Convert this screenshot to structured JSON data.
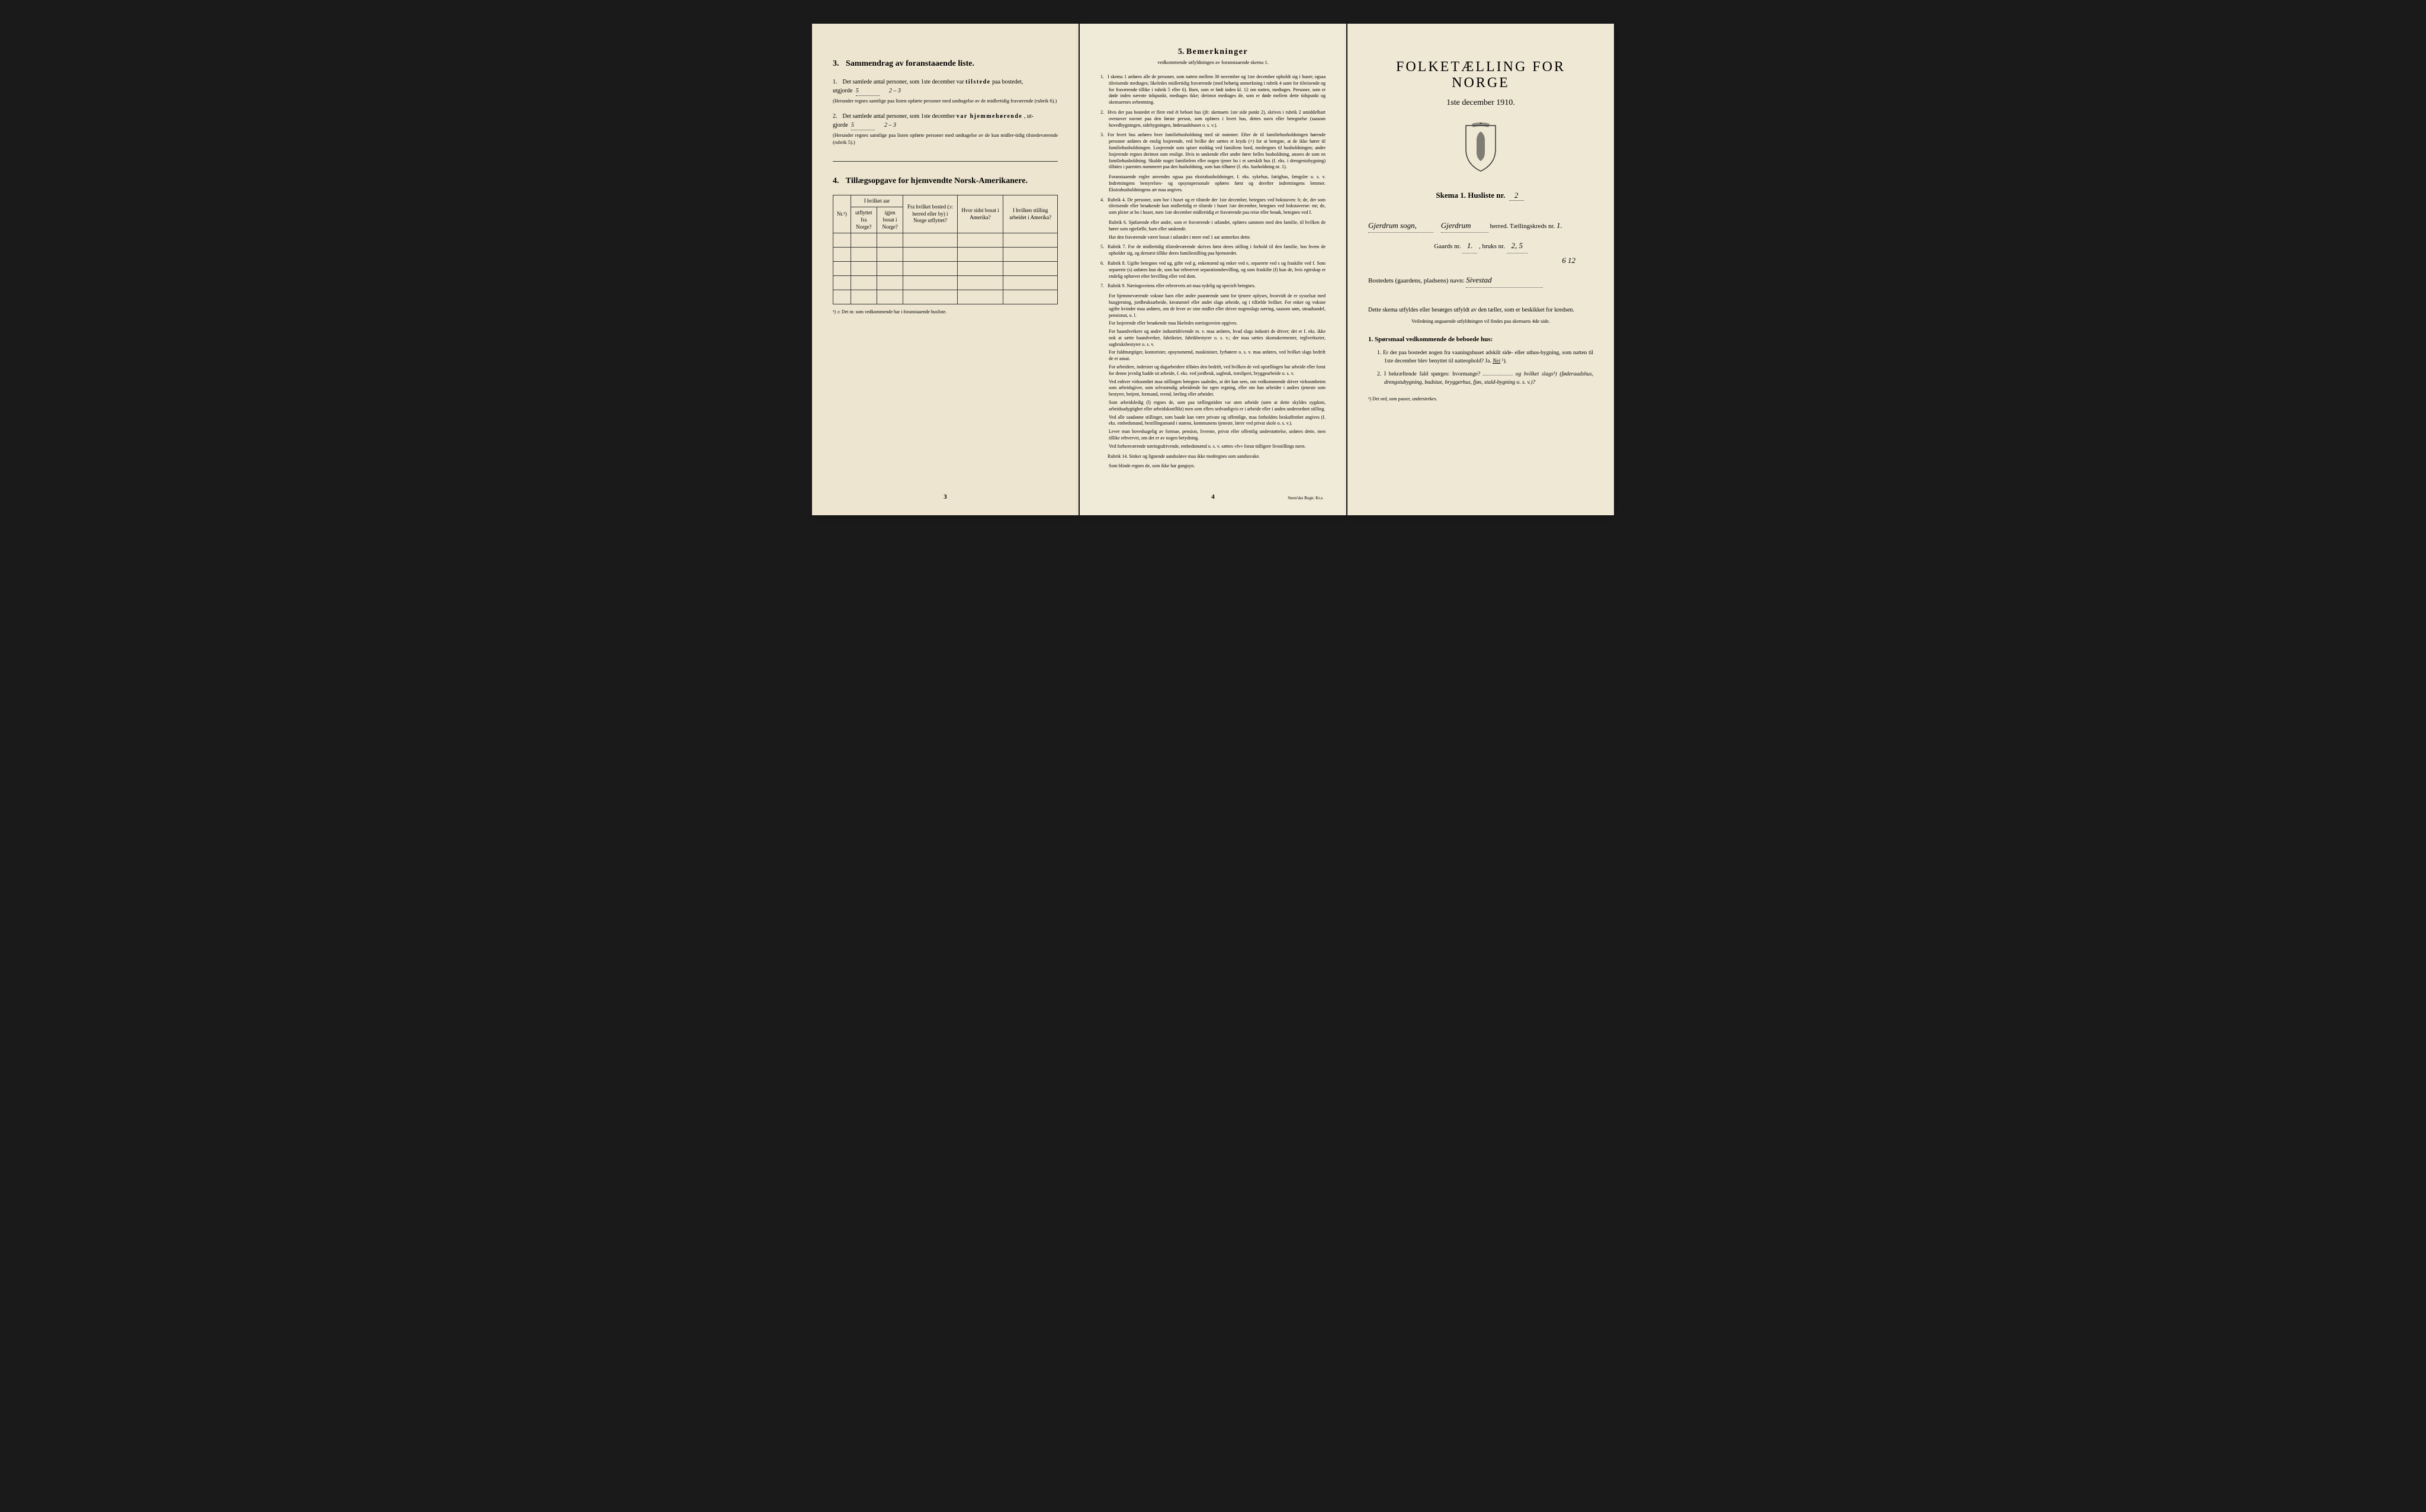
{
  "colors": {
    "page_bg": "#1a1a1a",
    "panel1_bg": "#ede5d0",
    "panel2_bg": "#f0ead8",
    "panel3_bg": "#efe8d5",
    "text": "#222222",
    "border": "#333333"
  },
  "typography": {
    "body_family": "Georgia, Times New Roman, serif",
    "title_size_pt": 24,
    "section_size_pt": 14,
    "body_size_pt": 10,
    "small_size_pt": 8
  },
  "panel1": {
    "section3": {
      "num": "3.",
      "title": "Sammendrag av foranstaaende liste.",
      "item1": {
        "num": "1.",
        "text_a": "Det samlede antal personer, som 1ste december var ",
        "text_bold": "tilstede",
        "text_b": " paa bostedet,",
        "text_c": "utgjorde",
        "fill_value": "5",
        "fill_note": "2 – 3",
        "note": "(Herunder regnes samtlige paa listen opførte personer med undtagelse av de midlertidig fraværende (rubrik 6).)"
      },
      "item2": {
        "num": "2.",
        "text_a": "Det samlede antal personer, som 1ste december ",
        "text_bold": "var hjemmehørende",
        "text_b": ", ut-",
        "text_c": "gjorde",
        "fill_value": "5",
        "fill_note": "2 – 3",
        "note": "(Herunder regnes samtlige paa listen opførte personer med undtagelse av de kun midler-tidig tilstedeværende (rubrik 5).)"
      }
    },
    "section4": {
      "num": "4.",
      "title": "Tillægsopgave for hjemvendte Norsk-Amerikanere.",
      "table": {
        "columns": [
          "Nr.¹)",
          "I hvilket aar",
          "Fra hvilket bosted (ɔ: herred eller by) i Norge utflyttet?",
          "Hvor sidst bosat i Amerika?",
          "I hvilken stilling arbeidet i Amerika?"
        ],
        "subcolumns_col2": [
          "utflyttet fra Norge?",
          "igjen bosat i Norge?"
        ],
        "rows": 5,
        "col_widths": [
          "30px",
          "45px",
          "45px",
          "95px",
          "80px",
          "95px"
        ]
      },
      "footnote": "¹) ɔ: Det nr. som vedkommende har i foranstaaende husliste."
    },
    "page_number": "3"
  },
  "panel2": {
    "title_num": "5.",
    "title": "Bemerkninger",
    "subtitle": "vedkommende utfyldningen av foranstaaende skema 1.",
    "remarks": [
      {
        "num": "1.",
        "text": "I skema 1 anføres alle de personer, som natten mellem 30 november og 1ste december opholdt sig i huset; ogsaa tilreisende medtages; likeledes midlertidig fraværende (med behørig anmerkning i rubrik 4 samt for tilreisende og for fraværende tillike i rubrik 5 eller 6). Barn, som er født inden kl. 12 om natten, medtages. Personer, som er døde inden nævnte tidspunkt, medtages ikke; derimot medtages de, som er døde mellem dette tidspunkt og skemaernes avhentning."
      },
      {
        "num": "2.",
        "text": "Hvis der paa bostedet er flere end ét beboet hus (jfr. skemaets 1ste side punkt 2), skrives i rubrik 2 umiddelbart ovenover navnet paa den første person, som opføres i hvert hus, dettes navn eller betegnelse (saasom hovedbygningen, sidebygningen, føderaadshuset o. s. v.)."
      },
      {
        "num": "3.",
        "text": "For hvert hus anføres hver familiehusholdning med sit nummer. Efter de til familiehusholdningen hørende personer anføres de enslig losjerende, ved hvilke der sættes et kryds (×) for at betegne, at de ikke hører til familiehusholdningen. Losjerende som spiser middag ved familiens bord, medregnes til husholdningen; andre losjerende regnes derimot som enslige. Hvis to søskende eller andre fører fælles husholdning, ansees de som en familiehusholdning. Skulde noget familielem eller nogen tjener bo i et særskilt hus (f. eks. i drengestubygning) tilføies i parentes nummeret paa den husholdning, som han tilhører (f. eks. husholdning nr. 1).",
        "subs": [
          "Foranstaaende regler anvendes ogsaa paa ekstrahusholdninger, f. eks. sykehus, fattighus, fængsler o. s. v. Indretningens bestyrelses- og opsynspersonale opføres først og derefter indretningens lemmer. Ekstrahusholdningens art maa angives."
        ]
      },
      {
        "num": "4.",
        "text": "Rubrik 4. De personer, som bor i huset og er tilstede der 1ste december, betegnes ved bokstaven: b; de, der som tilreisende eller besøkende kun midlertidig er tilstede i huset 1ste december, betegnes ved bokstaverne: mt; de, som pleier at bo i huset, men 1ste december midlertidig er fraværende paa reise eller besøk, betegnes ved f.",
        "subs": [
          "Rubrik 6. Sjøfarende eller andre, som er fraværende i utlandet, opføres sammen med den familie, til hvilken de hører som egtefælle, barn eller søskende.",
          "Har den fraværende været bosat i utlandet i mere end 1 aar anmerkes dette."
        ]
      },
      {
        "num": "5.",
        "text": "Rubrik 7. For de midlertidig tilstedeværende skrives først deres stilling i forhold til den familie, hos hvem de opholder sig, og dernæst tillike deres familiestilling paa hjemstedet."
      },
      {
        "num": "6.",
        "text": "Rubrik 8. Ugifte betegnes ved ug, gifte ved g, enkemænd og enker ved e, separerte ved s og fraskilte ved f. Som separerte (s) anføres kun de, som har erhvervet separationsbevilling, og som fraskilte (f) kun de, hvis egteskap er endelig ophævet efter bevilling eller ved dom."
      },
      {
        "num": "7.",
        "text": "Rubrik 9. Næringsveiens eller erhvervets art maa tydelig og specielt betegnes.",
        "subs": [
          "For hjemmeværende voksne barn eller andre paarørende samt for tjenere oplyses, hvorvidt de er sysselsat med husgjerning, jordbruksarbeide, kreaturstel eller andet slags arbeide, og i tilfælde hvilket. For enker og voksne ugifte kvinder maa anføres, om de lever av sine midler eller driver nogenslags næring, saasom søm, smaahandel, pensionat, o. l.",
          "For losjerende eller besøkende maa likeledes næringsveien opgives.",
          "For haandverkere og andre industridrivende m. v. maa anføres, hvad slags industri de driver; det er f. eks. ikke nok at sætte haandverker, fabrikeier, fabrikbestyrer o. s. v.; der maa sættes skomakermester, teglverkseier, sagbruksbestyrer o. s. v.",
          "For fuldmægtiger, kontorister, opsynsmænd, maskinister, fyrbøtere o. s. v. maa anføres, ved hvilket slags bedrift de er ansat.",
          "For arbeidere, inderster og dagarbeidere tilføies den bedrift, ved hvilken de ved optællingen har arbeide eller forut for denne jevnlig hadde sit arbeide, f. eks. ved jordbruk, sagbruk, træsliperi, bryggearbeide o. s. v.",
          "Ved enhver virksomhet maa stillingen betegnes saaledes, at det kan sees, om vedkommende driver virksomheten som arbeidsgiver, som selvstændig arbeidende for egen regning, eller om han arbeider i andres tjeneste som bestyrer, betjent, formand, svend, lærling eller arbeider.",
          "Som arbeidsledig (l) regnes de, som paa tællingstiden var uten arbeide (uten at dette skyldes sygdom, arbeidsudygtighet eller arbeidskonflikt) men som ellers sedvanligvis er i arbeide eller i anden underordnet stilling.",
          "Ved alle saadanne stillinger, som baade kan være private og offentlige, maa forholdets beskaffenhet angives (f. eks. embedsmand, bestillingsmand i statens, kommunens tjeneste, lærer ved privat skole o. s. v.).",
          "Lever man hovedsagelig av formue, pension, livrente, privat eller offentlig understøttelse, anføres dette, men tillike erhvervet, om det er av nogen betydning.",
          "Ved forhenværende næringsdrivende, embedsmænd o. s. v. sættes «fv» foran tidligere livsstillings navn."
        ]
      },
      {
        "num": "",
        "text": "Rubrik 14. Sinker og lignende aandssløve maa ikke medregnes som aandssvake.",
        "subs": [
          "Som blinde regnes de, som ikke har gangsyn."
        ]
      }
    ],
    "page_number": "4",
    "printer": "Steen'ske Bogtr. Kr.a"
  },
  "panel3": {
    "main_title": "FOLKETÆLLING FOR NORGE",
    "date": "1ste december 1910.",
    "skema_label": "Skema 1.  Husliste nr.",
    "skema_value": "2",
    "line1_prefix": "Gjerdrum sogn,",
    "line1_herred": "Gjerdrum",
    "line1_suffix": "herred.  Tællingskreds nr.",
    "line1_kreds": "1.",
    "line2_label": "Gaards nr.",
    "line2_gaard": "1.",
    "line2_bruk_label": ", bruks nr.",
    "line2_bruk": "2, 5",
    "line2_bruk2": "6    12",
    "line3_label": "Bostedets (gaardens, pladsens) navn:",
    "line3_value": "Sivestad",
    "instruction": "Dette skema utfyldes eller besørges utfyldt av den tæller, som er beskikket for kredsen.",
    "instruction_sub": "Veiledning angaaende utfyldningen vil findes paa skemaets 4de side.",
    "q_title_num": "1.",
    "q_title": "Spørsmaal vedkommende de beboede hus:",
    "q1": {
      "num": "1.",
      "text": "Er der paa bostedet nogen fra vaaningshuset adskilt side- eller uthus-bygning, som natten til 1ste december blev benyttet til natteophold?   Ja.   ",
      "answer": "Nei",
      "suffix": "¹)."
    },
    "q2": {
      "num": "2.",
      "text": "I bekræftende fald spørges: hvormange?",
      "fill": "",
      "text2": "og hvilket slags¹) (føderaadshus, drengstubygning, badstue, bryggerhus, fjøs, stald-bygning o. s. v.)?"
    },
    "footnote": "¹) Det ord, som passer, understrekes."
  }
}
